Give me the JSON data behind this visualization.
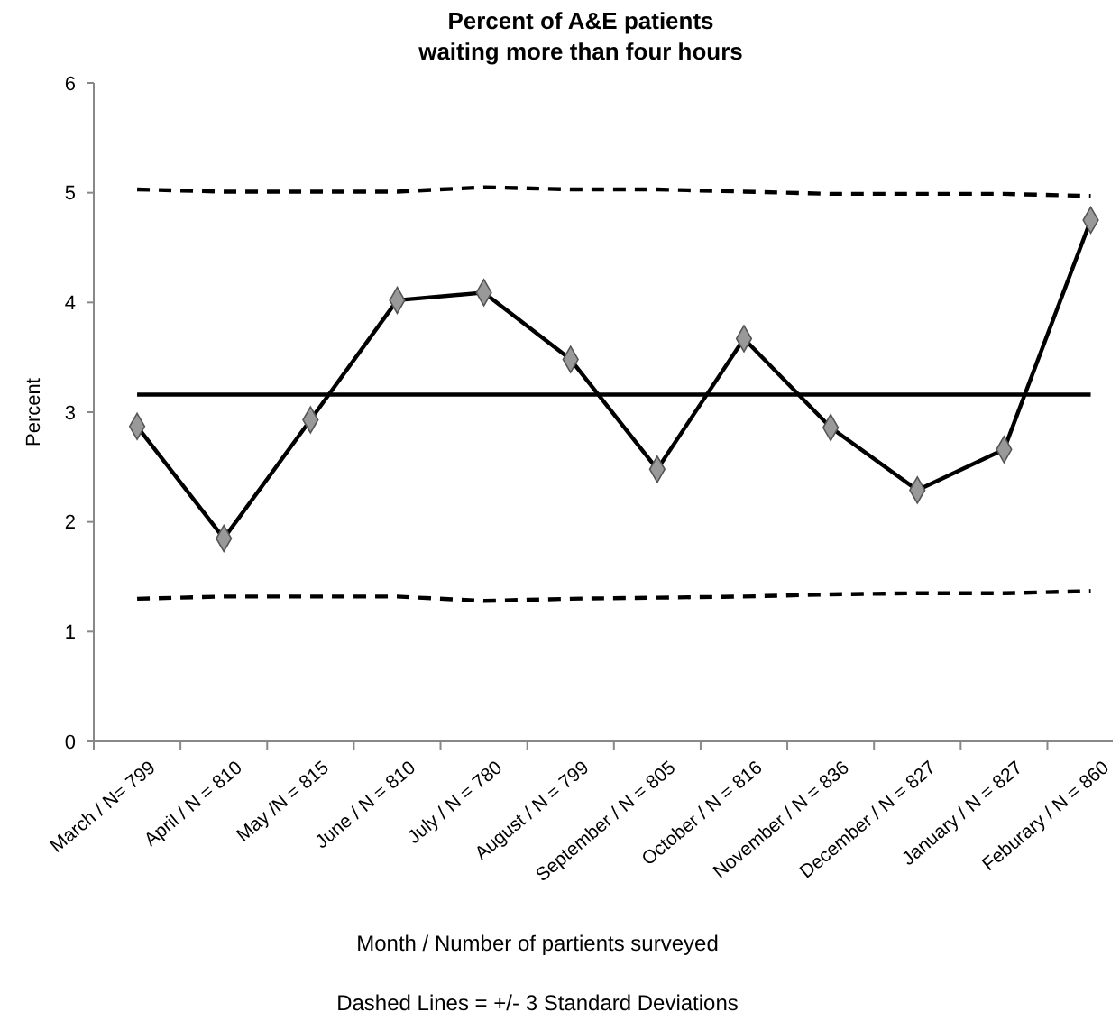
{
  "chart_data": {
    "type": "line",
    "title": "Percent of A&E patients\nwaiting more than four hours",
    "xlabel": "Month / Number of partients surveyed",
    "ylabel": "Percent",
    "categories": [
      "March / N= 799",
      "April / N = 810",
      "May /N = 815",
      "June / N = 810",
      "July / N = 780",
      "August / N = 799",
      "September / N = 805",
      "October / N = 816",
      "November / N = 836",
      "December / N = 827",
      "January / N = 827",
      "Feburary / N = 860"
    ],
    "series": [
      {
        "color": "#000000",
        "marker": "diamond",
        "line_style": "solid",
        "values": [
          2.87,
          1.85,
          2.93,
          4.02,
          4.09,
          3.48,
          2.48,
          3.67,
          2.86,
          2.29,
          2.66,
          4.75
        ]
      },
      {
        "color": "#000000",
        "marker": "none",
        "line_style": "solid",
        "values": [
          3.16,
          3.16,
          3.16,
          3.16,
          3.16,
          3.16,
          3.16,
          3.16,
          3.16,
          3.16,
          3.16,
          3.16
        ]
      },
      {
        "color": "#000000",
        "marker": "none",
        "line_style": "dashed",
        "values": [
          5.03,
          5.01,
          5.01,
          5.01,
          5.05,
          5.03,
          5.03,
          5.01,
          4.99,
          4.99,
          4.99,
          4.97
        ]
      },
      {
        "color": "#000000",
        "marker": "none",
        "line_style": "dashed",
        "values": [
          1.3,
          1.32,
          1.32,
          1.32,
          1.28,
          1.3,
          1.31,
          1.32,
          1.34,
          1.35,
          1.35,
          1.37
        ]
      }
    ],
    "ylim": [
      0,
      6
    ],
    "yticks": [
      0,
      1,
      2,
      3,
      4,
      5,
      6
    ],
    "grid": false,
    "annotations": [
      "Dashed Lines = +/- 3 Standard Deviations"
    ]
  }
}
